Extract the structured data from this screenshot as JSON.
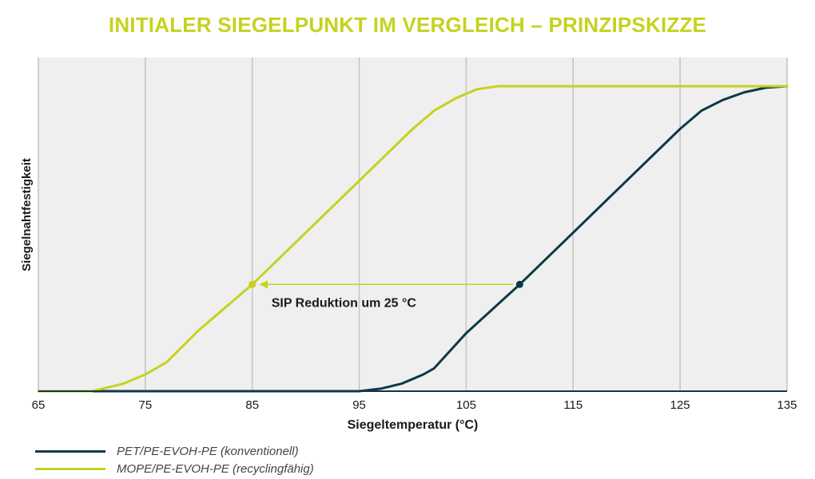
{
  "colors": {
    "accent": "#c5d21e",
    "dark": "#0f3847",
    "plot_bg": "#efefef",
    "grid": "#c4c4c4",
    "text": "#1a1a1a"
  },
  "chart_data": {
    "type": "line",
    "title": "INITIALER SIEGELPUNKT IM VERGLEICH – PRINZIPSKIZZE",
    "xlabel": "Siegeltemperatur (°C)",
    "ylabel": "Siegelnahtfestigkeit",
    "xlim": [
      65,
      135
    ],
    "ylim": [
      0,
      1
    ],
    "x_ticks": [
      "65",
      "75",
      "85",
      "95",
      "105",
      "115",
      "125",
      "135"
    ],
    "grid": "vertical",
    "legend": "bottom-left",
    "series": [
      {
        "name": "PET/PE-EVOH-PE (konventionell)",
        "color": "#0f3847",
        "x": [
          65,
          70,
          75,
          80,
          85,
          90,
          95,
          97,
          99,
          101,
          102,
          105,
          110,
          115,
          120,
          125,
          127,
          129,
          131,
          133,
          135
        ],
        "y": [
          0,
          0,
          0,
          0,
          0,
          0,
          0,
          0.008,
          0.025,
          0.055,
          0.075,
          0.19,
          0.35,
          0.52,
          0.69,
          0.86,
          0.92,
          0.955,
          0.98,
          0.995,
          1.0
        ]
      },
      {
        "name": "MOPE/PE-EVOH-PE (recyclingfähig)",
        "color": "#c5d21e",
        "x": [
          65,
          70,
          71,
          73,
          75,
          77,
          80,
          85,
          90,
          95,
          100,
          102,
          104,
          106,
          108,
          110,
          135
        ],
        "y": [
          0,
          0,
          0.008,
          0.025,
          0.055,
          0.095,
          0.2,
          0.35,
          0.52,
          0.69,
          0.86,
          0.92,
          0.96,
          0.99,
          1.0,
          1.0,
          1.0
        ]
      }
    ],
    "annotations": {
      "text": "SIP Reduktion um 25 °C",
      "arrow_from": {
        "x": 110,
        "y": 0.35
      },
      "arrow_to": {
        "x": 85,
        "y": 0.35
      }
    }
  }
}
